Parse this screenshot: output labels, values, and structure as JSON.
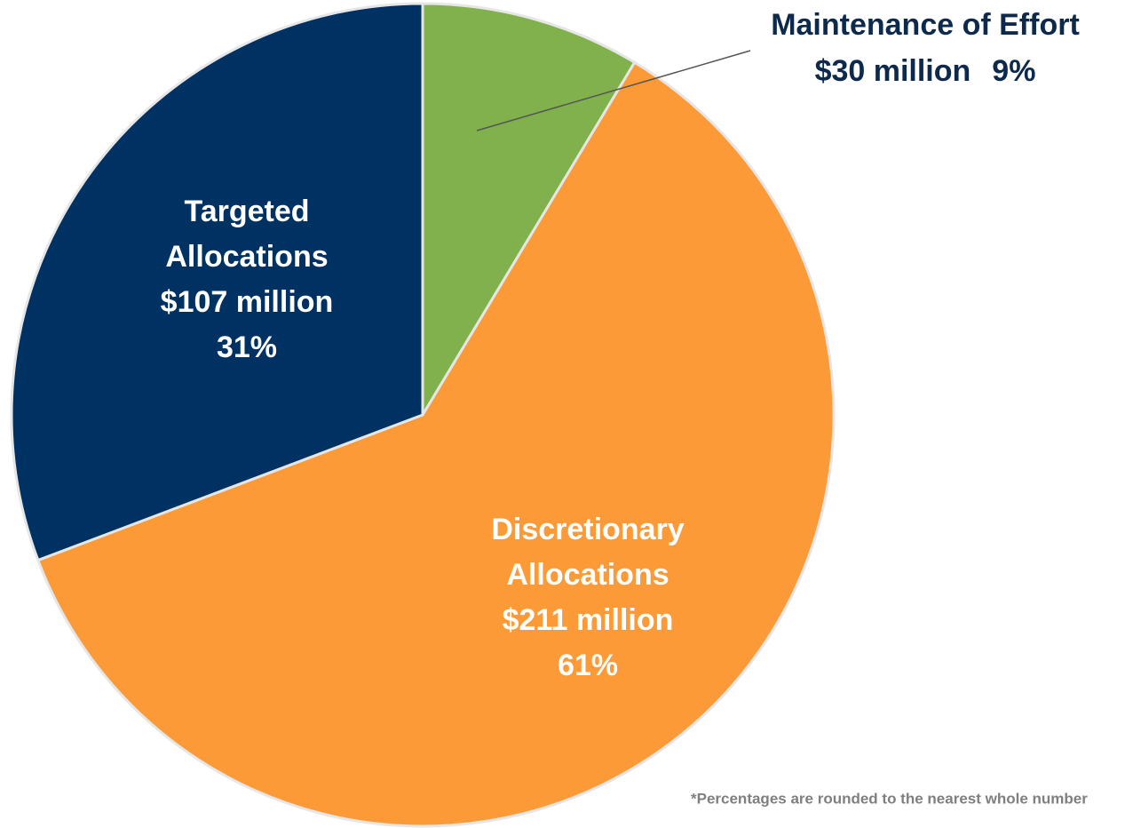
{
  "chart_data": {
    "type": "pie",
    "labels": [
      [
        "Maintenance of Effort"
      ],
      [
        "Discretionary",
        "Allocations"
      ],
      [
        "Targeted",
        "Allocations"
      ]
    ],
    "values": [
      30,
      211,
      107
    ],
    "value_labels": [
      "$30 million",
      "$211 million",
      "$107 million"
    ],
    "percent_labels": [
      "9%",
      "61%",
      "31%"
    ],
    "colors": [
      "#80b14d",
      "#fb9a36",
      "#003163"
    ],
    "footnote": "*Percentages are rounded to the nearest whole number"
  }
}
